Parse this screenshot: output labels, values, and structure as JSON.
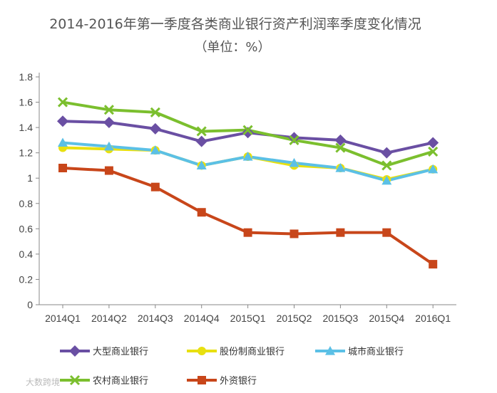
{
  "chart_data": {
    "type": "line",
    "title": "2014-2016年第一季度各类商业银行资产利润率季度变化情况",
    "subtitle": "（单位：%）",
    "categories": [
      "2014Q1",
      "2014Q2",
      "2014Q3",
      "2014Q4",
      "2015Q1",
      "2015Q2",
      "2015Q3",
      "2015Q4",
      "2016Q1"
    ],
    "ylim": [
      0,
      1.8
    ],
    "yticks": [
      0,
      0.2,
      0.4,
      0.6,
      0.8,
      1,
      1.2,
      1.4,
      1.6,
      1.8
    ],
    "ytick_labels": [
      "0",
      "0.2",
      "0.4",
      "0.6",
      "0.8",
      "1",
      "1.2",
      "1.4",
      "1.6",
      "1.8"
    ],
    "grid": false,
    "legend_position": "bottom",
    "series": [
      {
        "name": "大型商业银行",
        "color": "#6a4fa3",
        "marker": "diamond",
        "values": [
          1.45,
          1.44,
          1.39,
          1.29,
          1.36,
          1.32,
          1.3,
          1.2,
          1.28
        ]
      },
      {
        "name": "股份制商业银行",
        "color": "#e8e010",
        "marker": "circle",
        "values": [
          1.24,
          1.23,
          1.22,
          1.1,
          1.17,
          1.1,
          1.08,
          0.99,
          1.07
        ]
      },
      {
        "name": "城市商业银行",
        "color": "#5bc0e6",
        "marker": "triangle",
        "values": [
          1.28,
          1.25,
          1.22,
          1.1,
          1.17,
          1.12,
          1.08,
          0.98,
          1.07
        ]
      },
      {
        "name": "农村商业银行",
        "color": "#7bbf2e",
        "marker": "cross",
        "values": [
          1.6,
          1.54,
          1.52,
          1.37,
          1.38,
          1.3,
          1.24,
          1.1,
          1.21
        ]
      },
      {
        "name": "外资银行",
        "color": "#c8461a",
        "marker": "square",
        "values": [
          1.08,
          1.06,
          0.93,
          0.73,
          0.57,
          0.56,
          0.57,
          0.57,
          0.32
        ]
      }
    ]
  },
  "watermark": "大数跨境"
}
